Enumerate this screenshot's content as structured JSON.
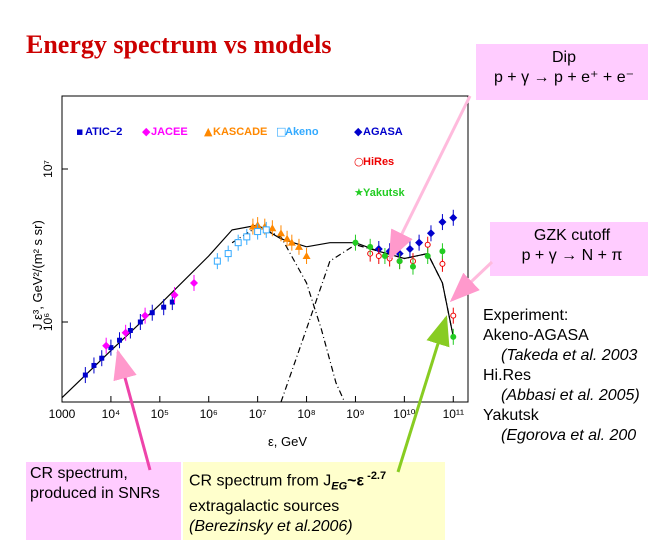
{
  "title": "Energy spectrum vs models",
  "annotations": {
    "dip": {
      "line1": "Dip",
      "line2": "p + γ → p + e⁺ + e⁻"
    },
    "gzk": {
      "line1": "GZK cutoff",
      "line2": "p + γ → N + π"
    },
    "experiment": {
      "heading": "Experiment:",
      "items": [
        "Akeno-AGASA",
        "(Takeda et al. 2003",
        "Hi.Res",
        "(Abbasi et al. 2005)",
        "Yakutsk",
        "(Egorova et al. 200"
      ]
    },
    "sources": {
      "line1": "CR spectrum,",
      "line2": "produced in SNRs"
    },
    "extragalactic": {
      "line1": "CR spectrum from  J",
      "sub": "EG",
      "mid": "~ε",
      "sup": " -2.7",
      "line2": "extragalactic sources",
      "line3": "(Berezinsky et al.2006)"
    }
  },
  "chart_data": {
    "type": "scatter",
    "xlabel": "ε, GeV",
    "ylabel": "J ε³, GeV²/(m² s sr)",
    "xscale": "log",
    "yscale": "log",
    "xlim": [
      1000,
      200000000000
    ],
    "ylim": [
      300000,
      30000000
    ],
    "x_ticks": [
      {
        "value": 1000,
        "label": "1000"
      },
      {
        "value": 10000,
        "label": "10⁴"
      },
      {
        "value": 100000,
        "label": "10⁵"
      },
      {
        "value": 1000000,
        "label": "10⁶"
      },
      {
        "value": 10000000,
        "label": "10⁷"
      },
      {
        "value": 100000000,
        "label": "10⁸"
      },
      {
        "value": 1000000000,
        "label": "10⁹"
      },
      {
        "value": 10000000000,
        "label": "10¹⁰"
      },
      {
        "value": 100000000000,
        "label": "10¹¹"
      }
    ],
    "y_ticks": [
      {
        "value": 1000000,
        "label": "10⁶"
      },
      {
        "value": 10000000,
        "label": "10⁷"
      }
    ],
    "legend": [
      {
        "name": "ATIC−2",
        "symbol": "▪",
        "color": "#0000cc"
      },
      {
        "name": "JACEE",
        "symbol": "◆",
        "color": "#ff00ff"
      },
      {
        "name": "KASCADE",
        "symbol": "▲",
        "color": "#ff8800"
      },
      {
        "name": "Akeno",
        "symbol": "□",
        "color": "#33aaff"
      },
      {
        "name": "AGASA",
        "symbol": "◆",
        "color": "#0000cc"
      },
      {
        "name": "HiRes",
        "symbol": "○",
        "color": "#ee0000"
      },
      {
        "name": "Yakutsk",
        "symbol": "★",
        "color": "#22cc22"
      }
    ],
    "series": [
      {
        "name": "ATIC−2",
        "color": "#0000cc",
        "marker": "square",
        "points": [
          [
            3000,
            450000
          ],
          [
            4500,
            520000
          ],
          [
            6500,
            580000
          ],
          [
            10000,
            680000
          ],
          [
            15000,
            760000
          ],
          [
            25000,
            880000
          ],
          [
            40000,
            1000000
          ],
          [
            70000,
            1150000
          ],
          [
            120000,
            1250000
          ],
          [
            180000,
            1350000
          ]
        ]
      },
      {
        "name": "JACEE",
        "color": "#ff00ff",
        "marker": "diamond",
        "points": [
          [
            8000,
            700000
          ],
          [
            20000,
            850000
          ],
          [
            50000,
            1100000
          ],
          [
            200000,
            1500000
          ],
          [
            500000,
            1800000
          ]
        ]
      },
      {
        "name": "KASCADE",
        "color": "#ff8800",
        "marker": "triangle",
        "points": [
          [
            8000000,
            4200000
          ],
          [
            10000000,
            4300000
          ],
          [
            14000000,
            4200000
          ],
          [
            20000000,
            4100000
          ],
          [
            30000000,
            3800000
          ],
          [
            40000000,
            3500000
          ],
          [
            50000000,
            3300000
          ],
          [
            70000000,
            3100000
          ],
          [
            100000000,
            2700000
          ]
        ]
      },
      {
        "name": "Akeno",
        "color": "#33aaff",
        "marker": "open-square",
        "points": [
          [
            1500000,
            2500000
          ],
          [
            2500000,
            2800000
          ],
          [
            4000000,
            3300000
          ],
          [
            6000000,
            3600000
          ],
          [
            10000000,
            3900000
          ],
          [
            15000000,
            4000000
          ]
        ]
      },
      {
        "name": "AGASA",
        "color": "#0000cc",
        "marker": "diamond",
        "points": [
          [
            3000000000,
            3000000
          ],
          [
            5000000000,
            2900000
          ],
          [
            8000000000,
            2800000
          ],
          [
            13000000000,
            3000000
          ],
          [
            20000000000,
            3300000
          ],
          [
            35000000000,
            3800000
          ],
          [
            60000000000,
            4500000
          ],
          [
            100000000000,
            4800000
          ]
        ]
      },
      {
        "name": "HiRes",
        "color": "#ee0000",
        "marker": "open-circle",
        "points": [
          [
            2000000000,
            2800000
          ],
          [
            3000000000,
            2700000
          ],
          [
            5000000000,
            2600000
          ],
          [
            8000000000,
            2500000
          ],
          [
            15000000000,
            2500000
          ],
          [
            30000000000,
            3200000
          ],
          [
            60000000000,
            2400000
          ],
          [
            100000000000,
            1100000
          ]
        ]
      },
      {
        "name": "Yakutsk",
        "color": "#22cc22",
        "marker": "star",
        "points": [
          [
            1000000000,
            3300000
          ],
          [
            2000000000,
            3100000
          ],
          [
            4000000000,
            2700000
          ],
          [
            8000000000,
            2500000
          ],
          [
            15000000000,
            2300000
          ],
          [
            30000000000,
            2700000
          ],
          [
            60000000000,
            2900000
          ],
          [
            100000000000,
            800000
          ]
        ]
      }
    ],
    "curves": [
      {
        "name": "total",
        "style": "solid",
        "points": [
          [
            1000,
            320000
          ],
          [
            10000,
            650000
          ],
          [
            100000,
            1300000
          ],
          [
            1000000,
            2700000
          ],
          [
            3000000,
            4000000
          ],
          [
            10000000,
            4300000
          ],
          [
            30000000,
            3500000
          ],
          [
            100000000,
            3100000
          ],
          [
            300000000,
            3300000
          ],
          [
            1000000000,
            3300000
          ],
          [
            3000000000,
            2900000
          ],
          [
            10000000000,
            2600000
          ],
          [
            30000000000,
            2800000
          ],
          [
            60000000000,
            1800000
          ],
          [
            100000000000,
            800000
          ]
        ]
      },
      {
        "name": "galactic",
        "style": "dash-dot",
        "points": [
          [
            3000000,
            3300000
          ],
          [
            10000000,
            4200000
          ],
          [
            30000000,
            3600000
          ],
          [
            100000000,
            1800000
          ],
          [
            200000000,
            900000
          ],
          [
            400000000,
            400000
          ],
          [
            600000000,
            300000
          ]
        ]
      },
      {
        "name": "extragalactic",
        "style": "dash-dot",
        "points": [
          [
            30000000,
            300000
          ],
          [
            100000000,
            900000
          ],
          [
            300000000,
            2500000
          ],
          [
            1000000000,
            3200000
          ],
          [
            3000000000,
            2900000
          ],
          [
            10000000000,
            2600000
          ],
          [
            30000000000,
            2800000
          ],
          [
            60000000000,
            1800000
          ],
          [
            100000000000,
            800000
          ]
        ]
      }
    ]
  }
}
